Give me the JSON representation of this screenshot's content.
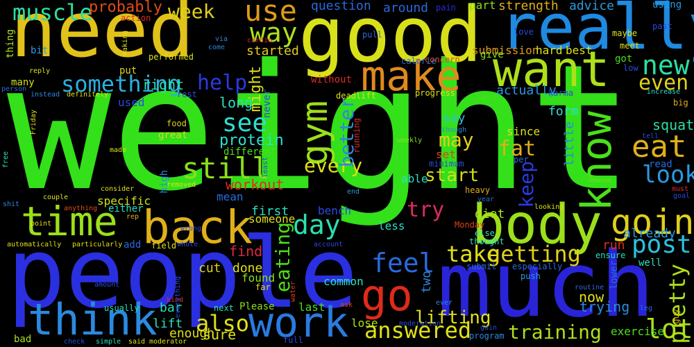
{
  "words": [
    {
      "text": "weight",
      "color": "#33e01a"
    },
    {
      "text": "people",
      "color": "#2a2fe0"
    },
    {
      "text": "need",
      "color": "#e0c21a"
    },
    {
      "text": "much",
      "color": "#2a24d8"
    },
    {
      "text": "good",
      "color": "#d8e01a"
    },
    {
      "text": "really",
      "color": "#1e8ae0"
    },
    {
      "text": "body",
      "color": "#9be01a"
    },
    {
      "text": "want",
      "color": "#aee01a"
    },
    {
      "text": "make",
      "color": "#e08a1e"
    },
    {
      "text": "time",
      "color": "#9be01a"
    },
    {
      "text": "back",
      "color": "#e0b01a"
    },
    {
      "text": "think",
      "color": "#2a8ae0"
    },
    {
      "text": "work",
      "color": "#2a7ae0"
    },
    {
      "text": "go",
      "color": "#e02a1a"
    },
    {
      "text": "know",
      "color": "#4ae01a"
    },
    {
      "text": "gym",
      "color": "#9be01a"
    },
    {
      "text": "going",
      "color": "#e0d01a"
    },
    {
      "text": "eat",
      "color": "#e0b01a"
    },
    {
      "text": "still",
      "color": "#8ae01a"
    },
    {
      "text": "new",
      "color": "#2ae0a0"
    },
    {
      "text": "post",
      "color": "#2ac2e0"
    },
    {
      "text": "lot",
      "color": "#aee01a"
    },
    {
      "text": "feel",
      "color": "#2a6ae0"
    },
    {
      "text": "look",
      "color": "#2a9ae0"
    },
    {
      "text": "answered",
      "color": "#e0e01a"
    },
    {
      "text": "day",
      "color": "#2ae0b0"
    },
    {
      "text": "take",
      "color": "#e0e01a"
    },
    {
      "text": "getting",
      "color": "#e0d01a"
    },
    {
      "text": "also",
      "color": "#e0e01a"
    },
    {
      "text": "pretty",
      "color": "#aee01a"
    },
    {
      "text": "something",
      "color": "#2ab0e0"
    },
    {
      "text": "use",
      "color": "#e09a1a"
    },
    {
      "text": "way",
      "color": "#aee01a"
    },
    {
      "text": "muscle",
      "color": "#2ae0a0"
    },
    {
      "text": "see",
      "color": "#2ae0d0"
    },
    {
      "text": "help",
      "color": "#2a3ae0"
    },
    {
      "text": "even",
      "color": "#e0d01a"
    },
    {
      "text": "fat",
      "color": "#e0b01a"
    },
    {
      "text": "may",
      "color": "#e0d01a"
    },
    {
      "text": "every",
      "color": "#e0e01a"
    },
    {
      "text": "start",
      "color": "#d0e01a"
    },
    {
      "text": "try",
      "color": "#e02a60"
    },
    {
      "text": "better",
      "color": "#2a8ae0"
    },
    {
      "text": "keep",
      "color": "#2a3ae0"
    },
    {
      "text": "training",
      "color": "#aee01a"
    },
    {
      "text": "eating",
      "color": "#4ae01a"
    },
    {
      "text": "lifting",
      "color": "#e0e01a"
    },
    {
      "text": "probably",
      "color": "#e04a1a"
    },
    {
      "text": "week",
      "color": "#e0d01a"
    },
    {
      "text": "right",
      "color": "#2ae0b0"
    },
    {
      "text": "long",
      "color": "#2ae0c0"
    },
    {
      "text": "might",
      "color": "#e0e01a"
    },
    {
      "text": "protein",
      "color": "#2ae0d0"
    },
    {
      "text": "workout",
      "color": "#e02a1a"
    },
    {
      "text": "question",
      "color": "#2a6ae0"
    },
    {
      "text": "around",
      "color": "#2a6ae0"
    },
    {
      "text": "part",
      "color": "#8ae01a"
    },
    {
      "text": "strength",
      "color": "#e0b01a"
    },
    {
      "text": "advice",
      "color": "#2a9ae0"
    },
    {
      "text": "started",
      "color": "#e0d01a"
    },
    {
      "text": "submission",
      "color": "#e09a1a"
    },
    {
      "text": "hard",
      "color": "#e0e01a"
    },
    {
      "text": "best",
      "color": "#e0e01a"
    },
    {
      "text": "actually",
      "color": "#2a9ae0"
    },
    {
      "text": "form",
      "color": "#2ae0d0"
    },
    {
      "text": "squat",
      "color": "#2ae0a0"
    },
    {
      "text": "say",
      "color": "#2ac2e0"
    },
    {
      "text": "since",
      "color": "#e0e01a"
    },
    {
      "text": "little",
      "color": "#2a8ae0"
    },
    {
      "text": "set",
      "color": "#e0401a"
    },
    {
      "text": "able",
      "color": "#2ae0c0"
    },
    {
      "text": "first",
      "color": "#2ae0c0"
    },
    {
      "text": "bench",
      "color": "#2a4ae0"
    },
    {
      "text": "diet",
      "color": "#aee01a"
    },
    {
      "text": "already",
      "color": "#2a9ae0"
    },
    {
      "text": "run",
      "color": "#e02a1a"
    },
    {
      "text": "less",
      "color": "#2ae0c0"
    },
    {
      "text": "someone",
      "color": "#e0e01a"
    },
    {
      "text": "find",
      "color": "#e02a40"
    },
    {
      "text": "done",
      "color": "#e0e01a"
    },
    {
      "text": "found",
      "color": "#8ae01a"
    },
    {
      "text": "cut",
      "color": "#e0d01a"
    },
    {
      "text": "bar",
      "color": "#2ae0c0"
    },
    {
      "text": "lift",
      "color": "#2ae0b0"
    },
    {
      "text": "enough",
      "color": "#e0e01a"
    },
    {
      "text": "sure",
      "color": "#e0e01a"
    },
    {
      "text": "common",
      "color": "#2ae0c0"
    },
    {
      "text": "lose",
      "color": "#aee01a"
    },
    {
      "text": "last",
      "color": "#4ae01a"
    },
    {
      "text": "two",
      "color": "#2a8ae0"
    },
    {
      "text": "now",
      "color": "#e0e01a"
    },
    {
      "text": "trying",
      "color": "#2a8ae0"
    },
    {
      "text": "exercise",
      "color": "#4ae01a"
    },
    {
      "text": "used",
      "color": "#2a4ae0"
    },
    {
      "text": "mean",
      "color": "#2a6ae0"
    },
    {
      "text": "specific",
      "color": "#d0e01a"
    },
    {
      "text": "either",
      "color": "#2ae0c0"
    },
    {
      "text": "different",
      "color": "#4ae01a"
    },
    {
      "text": "high",
      "color": "#2a8ae0"
    },
    {
      "text": "great",
      "color": "#d0e01a"
    },
    {
      "text": "Please",
      "color": "#8ae01a"
    },
    {
      "text": "bad",
      "color": "#aee01a"
    },
    {
      "text": "without",
      "color": "#e02a2a"
    },
    {
      "text": "never",
      "color": "#2a4ae0"
    },
    {
      "text": "thing",
      "color": "#aee01a"
    },
    {
      "text": "many",
      "color": "#d0e01a"
    },
    {
      "text": "bit",
      "color": "#2a9ae0"
    },
    {
      "text": "put",
      "color": "#e0d01a"
    },
    {
      "text": "performed",
      "color": "#e0e01a"
    },
    {
      "text": "give",
      "color": "#8ae01a"
    },
    {
      "text": "got",
      "color": "#4ae01a"
    },
    {
      "text": "lower",
      "color": "#2a6ae0"
    },
    {
      "text": "well",
      "color": "#2ae0c0"
    },
    {
      "text": "guy",
      "color": "#e0b01a"
    },
    {
      "text": "big",
      "color": "#e0b01a"
    },
    {
      "text": "read",
      "color": "#2a6ae0"
    },
    {
      "text": "add",
      "color": "#2a6ae0"
    },
    {
      "text": "low",
      "color": "#2a4ae0"
    },
    {
      "text": "full",
      "color": "#2a4ae0"
    },
    {
      "text": "rest",
      "color": "#2a4ae0"
    },
    {
      "text": "food",
      "color": "#e0d01a"
    },
    {
      "text": "ensure",
      "color": "#2ae0c0"
    },
    {
      "text": "must",
      "color": "#e02a2a"
    },
    {
      "text": "goal",
      "color": "#2a4ae0"
    },
    {
      "text": "tell",
      "color": "#2a4ae0"
    },
    {
      "text": "increase",
      "color": "#2ae0d0"
    },
    {
      "text": "maybe",
      "color": "#e0e01a"
    },
    {
      "text": "meet",
      "color": "#e0e01a"
    },
    {
      "text": "past",
      "color": "#2a4ae0"
    },
    {
      "text": "using",
      "color": "#2a9ae0"
    },
    {
      "text": "pain",
      "color": "#2a2ae0"
    },
    {
      "text": "action",
      "color": "#e02a2a"
    },
    {
      "text": "via",
      "color": "#2a8ae0"
    },
    {
      "text": "come",
      "color": "#2a8ae0"
    },
    {
      "text": "cardio",
      "color": "#e02a2a"
    },
    {
      "text": "pull",
      "color": "#2a6ae0"
    },
    {
      "text": "calorie",
      "color": "#2a6ae0"
    },
    {
      "text": "concern",
      "color": "#e04a1a"
    },
    {
      "text": "love",
      "color": "#2a4ae0"
    },
    {
      "text": "karma",
      "color": "#2a4ae0"
    },
    {
      "text": "went",
      "color": "#4ae01a"
    },
    {
      "text": "progress",
      "color": "#e0e01a"
    },
    {
      "text": "deadlift",
      "color": "#e0e01a"
    },
    {
      "text": "running",
      "color": "#e02a2a"
    },
    {
      "text": "weekly",
      "color": "#8ae01a"
    },
    {
      "text": "least",
      "color": "#2a4ae0"
    },
    {
      "text": "minimum",
      "color": "#2a4ae0"
    },
    {
      "text": "though",
      "color": "#2a8ae0"
    },
    {
      "text": "per",
      "color": "#2a6ae0"
    },
    {
      "text": "heavy",
      "color": "#e0b01a"
    },
    {
      "text": "year",
      "color": "#2a6ae0"
    },
    {
      "text": "end",
      "color": "#2a9ae0"
    },
    {
      "text": "looking",
      "color": "#e0e01a"
    },
    {
      "text": "Monday",
      "color": "#e0401a"
    },
    {
      "text": "else",
      "color": "#2ae0c0"
    },
    {
      "text": "thought",
      "color": "#2ae0c0"
    },
    {
      "text": "submit",
      "color": "#2a6ae0"
    },
    {
      "text": "especially",
      "color": "#2a6ae0"
    },
    {
      "text": "push",
      "color": "#2a9ae0"
    },
    {
      "text": "routine",
      "color": "#2a6ae0"
    },
    {
      "text": "leg",
      "color": "#2a6ae0"
    },
    {
      "text": "gain",
      "color": "#2a4ae0"
    },
    {
      "text": "moderation",
      "color": "#2a4ae0"
    },
    {
      "text": "ever",
      "color": "#2a8ae0"
    },
    {
      "text": "ask",
      "color": "#e0401a"
    },
    {
      "text": "water",
      "color": "#e0401a"
    },
    {
      "text": "far",
      "color": "#e0e01a"
    },
    {
      "text": "next",
      "color": "#2ae0c0"
    },
    {
      "text": "kind",
      "color": "#e02a2a"
    },
    {
      "text": "everything",
      "color": "#2a4ae0"
    },
    {
      "text": "whole",
      "color": "#2a4ae0"
    },
    {
      "text": "field",
      "color": "#e0e01a"
    },
    {
      "text": "account",
      "color": "#2a4ae0"
    },
    {
      "text": "wrong",
      "color": "#2a4ae0"
    },
    {
      "text": "removed",
      "color": "#e0e01a"
    },
    {
      "text": "consider",
      "color": "#e0e01a"
    },
    {
      "text": "made",
      "color": "#e0e01a"
    },
    {
      "text": "free",
      "color": "#2ae0c0"
    },
    {
      "text": "Friday",
      "color": "#e0e01a"
    },
    {
      "text": "reply",
      "color": "#e0e01a"
    },
    {
      "text": "person",
      "color": "#2a6ae0"
    },
    {
      "text": "instead",
      "color": "#2a8ae0"
    },
    {
      "text": "definitely",
      "color": "#e0e01a"
    },
    {
      "text": "shit",
      "color": "#2a8ae0"
    },
    {
      "text": "couple",
      "color": "#e0e01a"
    },
    {
      "text": "anything",
      "color": "#e04a1a"
    },
    {
      "text": "point",
      "color": "#e0e01a"
    },
    {
      "text": "rep",
      "color": "#e0b01a"
    },
    {
      "text": "automatically",
      "color": "#e0e01a"
    },
    {
      "text": "particularly",
      "color": "#e0e01a"
    },
    {
      "text": "amount",
      "color": "#2a4ae0"
    },
    {
      "text": "usually",
      "color": "#2ae0c0"
    },
    {
      "text": "check",
      "color": "#2a4ae0"
    },
    {
      "text": "simple",
      "color": "#2ae0c0"
    },
    {
      "text": "said",
      "color": "#e0e01a"
    },
    {
      "text": "moderator",
      "color": "#e0e01a"
    },
    {
      "text": "making",
      "color": "#e0e01a"
    },
    {
      "text": "program",
      "color": "#2a8ae0"
    }
  ]
}
